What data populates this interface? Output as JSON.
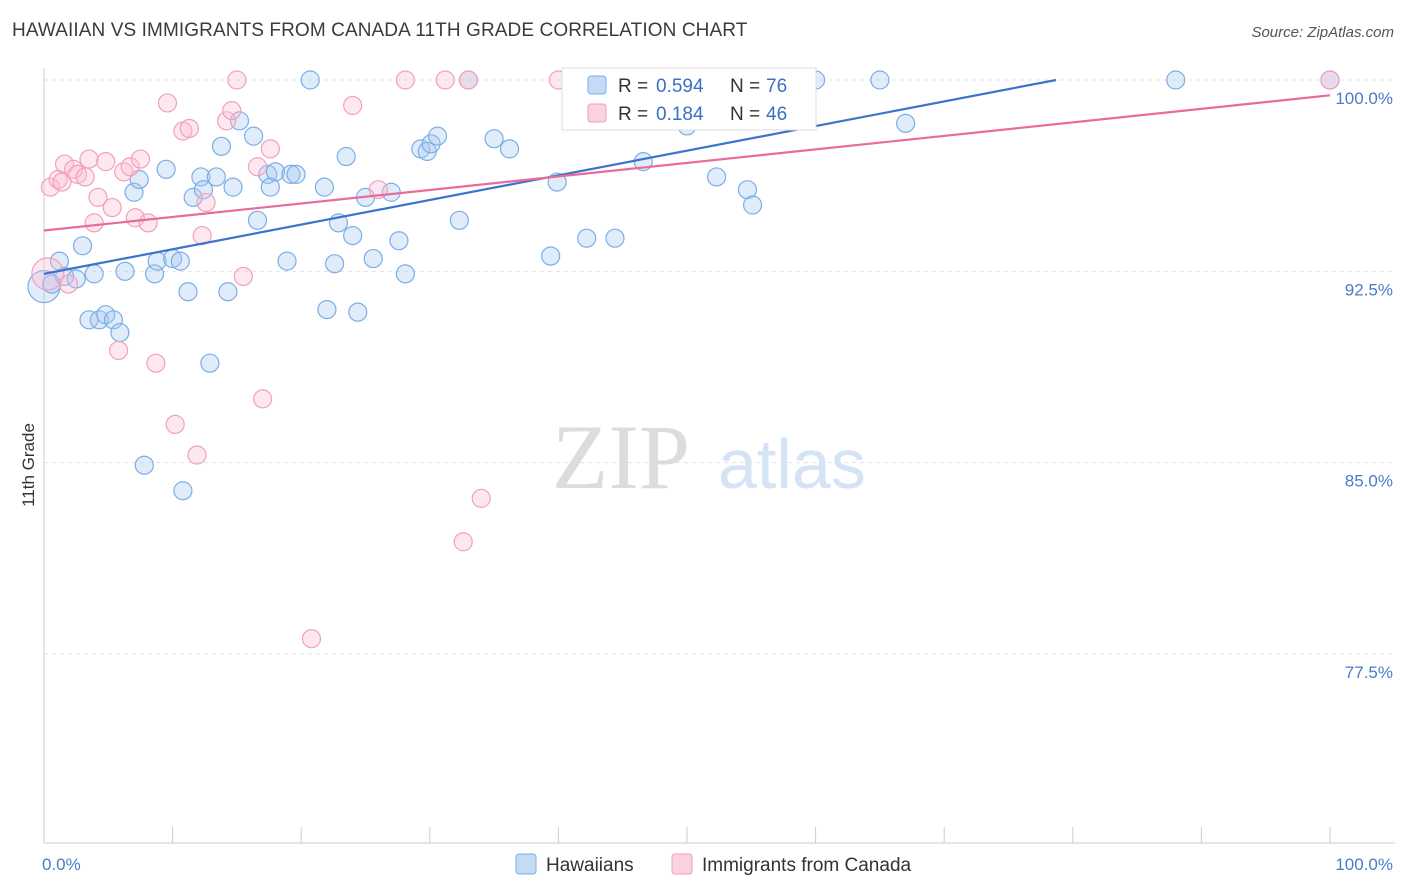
{
  "title": "HAWAIIAN VS IMMIGRANTS FROM CANADA 11TH GRADE CORRELATION CHART",
  "source": "Source: ZipAtlas.com",
  "watermark": {
    "zip": "ZIP",
    "atlas": "atlas"
  },
  "legend_top": [
    {
      "r_label": "R =",
      "r_value": "0.594",
      "n_label": "N =",
      "n_value": "76",
      "color": "#7aaee8"
    },
    {
      "r_label": "R =",
      "r_value": "0.184",
      "n_label": "N =",
      "n_value": "46",
      "color": "#f2a0ba"
    }
  ],
  "chart_data": {
    "type": "scatter",
    "title": "HAWAIIAN VS IMMIGRANTS FROM CANADA 11TH GRADE CORRELATION CHART",
    "xlabel": "",
    "ylabel": "11th Grade",
    "xlim": [
      0,
      100
    ],
    "ylim": [
      70,
      101
    ],
    "x_tick_labels": [
      "0.0%",
      "100.0%"
    ],
    "y_ticks": [
      77.5,
      85.0,
      92.5,
      100.0
    ],
    "y_tick_labels": [
      "77.5%",
      "85.0%",
      "92.5%",
      "100.0%"
    ],
    "grid": true,
    "legend_position": "bottom",
    "series": [
      {
        "name": "Hawaiians",
        "color": "#7aaee8",
        "trend": {
          "x": [
            0,
            78.7
          ],
          "y": [
            92.4,
            100.0
          ]
        },
        "points": [
          [
            0.0,
            91.9
          ],
          [
            0.6,
            92.0
          ],
          [
            1.2,
            92.9
          ],
          [
            1.6,
            92.3
          ],
          [
            2.5,
            92.2
          ],
          [
            3.0,
            93.5
          ],
          [
            3.5,
            90.6
          ],
          [
            3.9,
            92.4
          ],
          [
            4.3,
            90.6
          ],
          [
            4.8,
            90.8
          ],
          [
            5.4,
            90.6
          ],
          [
            5.9,
            90.1
          ],
          [
            6.3,
            92.5
          ],
          [
            7.0,
            95.6
          ],
          [
            7.4,
            96.1
          ],
          [
            7.8,
            84.9
          ],
          [
            8.6,
            92.4
          ],
          [
            8.8,
            92.9
          ],
          [
            9.5,
            96.5
          ],
          [
            10.0,
            93.0
          ],
          [
            10.6,
            92.9
          ],
          [
            10.8,
            83.9
          ],
          [
            11.2,
            91.7
          ],
          [
            11.6,
            95.4
          ],
          [
            12.2,
            96.2
          ],
          [
            12.4,
            95.7
          ],
          [
            12.9,
            88.9
          ],
          [
            13.4,
            96.2
          ],
          [
            13.8,
            97.4
          ],
          [
            14.3,
            91.7
          ],
          [
            14.7,
            95.8
          ],
          [
            15.2,
            98.4
          ],
          [
            16.3,
            97.8
          ],
          [
            16.6,
            94.5
          ],
          [
            17.4,
            96.3
          ],
          [
            17.6,
            95.8
          ],
          [
            18.0,
            96.4
          ],
          [
            18.9,
            92.9
          ],
          [
            19.2,
            96.3
          ],
          [
            19.6,
            96.3
          ],
          [
            20.7,
            100.0
          ],
          [
            21.8,
            95.8
          ],
          [
            22.0,
            91.0
          ],
          [
            22.6,
            92.8
          ],
          [
            22.9,
            94.4
          ],
          [
            23.5,
            97.0
          ],
          [
            24.0,
            93.9
          ],
          [
            24.4,
            90.9
          ],
          [
            25.0,
            95.4
          ],
          [
            25.6,
            93.0
          ],
          [
            27.0,
            95.6
          ],
          [
            27.6,
            93.7
          ],
          [
            28.1,
            92.4
          ],
          [
            29.3,
            97.3
          ],
          [
            29.8,
            97.2
          ],
          [
            30.1,
            97.5
          ],
          [
            30.6,
            97.8
          ],
          [
            32.3,
            94.5
          ],
          [
            33.0,
            100.0
          ],
          [
            35.0,
            97.7
          ],
          [
            36.2,
            97.3
          ],
          [
            39.4,
            93.1
          ],
          [
            39.9,
            96.0
          ],
          [
            42.2,
            93.8
          ],
          [
            44.4,
            93.8
          ],
          [
            46.6,
            96.8
          ],
          [
            50.0,
            98.2
          ],
          [
            52.3,
            96.2
          ],
          [
            54.7,
            95.7
          ],
          [
            55.1,
            95.1
          ],
          [
            60.0,
            100.0
          ],
          [
            65.0,
            100.0
          ],
          [
            67.0,
            98.3
          ],
          [
            88.0,
            100.0
          ],
          [
            100.0,
            100.0
          ],
          [
            44.8,
            100.0
          ]
        ]
      },
      {
        "name": "Immigrants from Canada",
        "color": "#f2a0ba",
        "trend": {
          "x": [
            0,
            100
          ],
          "y": [
            94.1,
            99.4
          ]
        },
        "points": [
          [
            0.3,
            92.4
          ],
          [
            0.5,
            95.8
          ],
          [
            1.1,
            96.1
          ],
          [
            1.4,
            96.0
          ],
          [
            1.6,
            96.7
          ],
          [
            1.9,
            92.0
          ],
          [
            2.3,
            96.5
          ],
          [
            2.6,
            96.3
          ],
          [
            3.2,
            96.2
          ],
          [
            3.5,
            96.9
          ],
          [
            3.9,
            94.4
          ],
          [
            4.2,
            95.4
          ],
          [
            4.8,
            96.8
          ],
          [
            5.3,
            95.0
          ],
          [
            5.8,
            89.4
          ],
          [
            6.2,
            96.4
          ],
          [
            6.7,
            96.6
          ],
          [
            7.1,
            94.6
          ],
          [
            7.5,
            96.9
          ],
          [
            8.1,
            94.4
          ],
          [
            8.7,
            88.9
          ],
          [
            9.6,
            99.1
          ],
          [
            10.2,
            86.5
          ],
          [
            10.8,
            98.0
          ],
          [
            11.3,
            98.1
          ],
          [
            11.9,
            85.3
          ],
          [
            12.3,
            93.9
          ],
          [
            12.6,
            95.2
          ],
          [
            14.2,
            98.4
          ],
          [
            14.6,
            98.8
          ],
          [
            15.0,
            100.0
          ],
          [
            15.5,
            92.3
          ],
          [
            16.6,
            96.6
          ],
          [
            17.0,
            87.5
          ],
          [
            17.6,
            97.3
          ],
          [
            20.8,
            78.1
          ],
          [
            24.0,
            99.0
          ],
          [
            26.0,
            95.7
          ],
          [
            28.1,
            100.0
          ],
          [
            31.2,
            100.0
          ],
          [
            32.6,
            81.9
          ],
          [
            34.0,
            83.6
          ],
          [
            33.0,
            100.0
          ],
          [
            40.0,
            100.0
          ],
          [
            50.0,
            100.0
          ],
          [
            100.0,
            100.0
          ]
        ]
      }
    ]
  }
}
